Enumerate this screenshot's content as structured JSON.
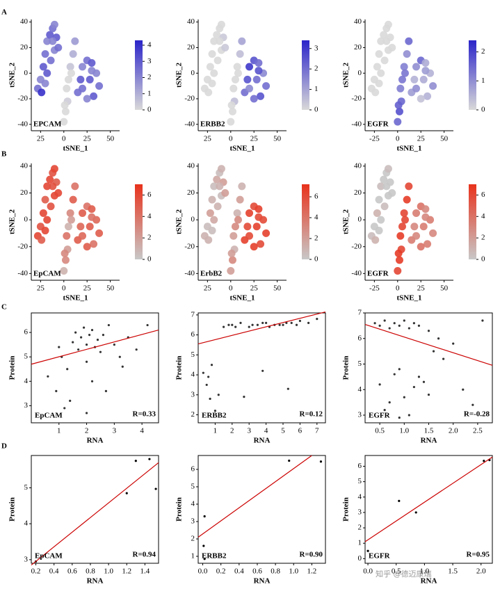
{
  "panel_labels": [
    "A",
    "B",
    "C",
    "D"
  ],
  "watermark": "知乎 @德迈康瑞",
  "chart_data": [
    {
      "type": "tsne",
      "label": "EPCAM",
      "xlabel": "tSNE_1",
      "ylabel": "tSNE_2",
      "xlim": [
        -35,
        60
      ],
      "ylim": [
        -45,
        42
      ],
      "xticks": [
        {
          "value": -25,
          "label": "25"
        },
        0,
        25,
        50
      ],
      "yticks": [
        -40,
        -20,
        0,
        20,
        40
      ],
      "x": [
        -28,
        -25,
        -22,
        -20,
        -18,
        -15,
        -12,
        -10,
        -8,
        -10,
        -14,
        -18,
        -20,
        -24,
        -6,
        -12,
        0,
        2,
        4,
        3,
        5,
        7,
        10,
        12,
        8,
        1,
        15,
        18,
        20,
        25,
        30,
        35,
        38,
        32,
        25,
        20,
        28,
        30
      ],
      "y": [
        -12,
        -5,
        5,
        15,
        25,
        30,
        35,
        38,
        28,
        18,
        10,
        0,
        -8,
        -15,
        20,
        25,
        -38,
        -30,
        -22,
        -12,
        -5,
        5,
        15,
        25,
        0,
        -25,
        -15,
        -5,
        5,
        10,
        8,
        0,
        -10,
        -18,
        -20,
        -12,
        -5,
        2
      ],
      "values": [
        2.5,
        2,
        3,
        2.5,
        2,
        3,
        2.5,
        2,
        3,
        2,
        2.5,
        3,
        2,
        4,
        2.5,
        2,
        0,
        0,
        0.3,
        0,
        0,
        0.5,
        1,
        1.5,
        0,
        0,
        2.5,
        3,
        2,
        2.5,
        3,
        2,
        2.5,
        3,
        2,
        2.5,
        3,
        2
      ],
      "colorbar": {
        "lim": [
          0,
          4.3
        ],
        "ticks": [
          0,
          1,
          2,
          3,
          4
        ],
        "colors": [
          "#d9d9d9",
          "#2b24c9"
        ]
      }
    },
    {
      "type": "tsne",
      "label": "ERBB2",
      "xlabel": "tSNE_1",
      "ylabel": "tSNE_2",
      "xlim": [
        -35,
        60
      ],
      "ylim": [
        -45,
        42
      ],
      "xticks": [
        {
          "value": -25,
          "label": "25"
        },
        0,
        25,
        50
      ],
      "yticks": [
        -40,
        -20,
        0,
        20,
        40
      ],
      "x": [
        -28,
        -25,
        -22,
        -20,
        -18,
        -15,
        -12,
        -10,
        -8,
        -10,
        -14,
        -18,
        -20,
        -24,
        -6,
        -12,
        0,
        2,
        4,
        3,
        5,
        7,
        10,
        12,
        8,
        1,
        15,
        18,
        20,
        25,
        30,
        35,
        38,
        32,
        25,
        20,
        28,
        30
      ],
      "y": [
        -12,
        -5,
        5,
        15,
        25,
        30,
        35,
        38,
        28,
        18,
        10,
        0,
        -8,
        -15,
        20,
        25,
        -38,
        -30,
        -22,
        -12,
        -5,
        5,
        15,
        25,
        0,
        -25,
        -15,
        -5,
        5,
        10,
        8,
        0,
        -10,
        -18,
        -20,
        -12,
        -5,
        2
      ],
      "values": [
        0,
        0,
        0,
        0,
        0,
        0,
        0,
        0,
        0.3,
        0,
        0,
        0,
        0,
        0,
        0.3,
        0,
        0,
        0,
        0.5,
        0,
        0,
        0,
        0.5,
        1,
        0,
        0,
        2,
        2.5,
        3,
        2.5,
        2,
        1.5,
        2,
        2.5,
        2,
        1.5,
        2,
        2.5
      ],
      "colorbar": {
        "lim": [
          0,
          3.4
        ],
        "ticks": [
          0,
          1,
          2,
          3
        ],
        "colors": [
          "#d9d9d9",
          "#2b24c9"
        ]
      }
    },
    {
      "type": "tsne",
      "label": "EGFR",
      "xlabel": "tSNE_1",
      "ylabel": "tSNE_2",
      "xlim": [
        -35,
        60
      ],
      "ylim": [
        -45,
        42
      ],
      "xticks": [
        -25,
        0,
        25,
        50
      ],
      "yticks": [
        -40,
        -20,
        0,
        20,
        40
      ],
      "x": [
        -28,
        -25,
        -22,
        -20,
        -18,
        -15,
        -12,
        -10,
        -8,
        -10,
        -14,
        -18,
        -20,
        -24,
        -6,
        -12,
        0,
        2,
        4,
        3,
        5,
        7,
        10,
        12,
        8,
        1,
        15,
        18,
        20,
        25,
        30,
        35,
        38,
        32,
        25,
        20,
        28,
        30
      ],
      "y": [
        -12,
        -5,
        5,
        15,
        25,
        30,
        35,
        38,
        28,
        18,
        10,
        0,
        -8,
        -15,
        20,
        25,
        -38,
        -30,
        -22,
        -12,
        -5,
        5,
        15,
        25,
        0,
        -25,
        -15,
        -5,
        5,
        10,
        8,
        0,
        -10,
        -18,
        -20,
        -12,
        -5,
        2
      ],
      "values": [
        0,
        0,
        0,
        0,
        0,
        0,
        0,
        0,
        0,
        0,
        0,
        0,
        0,
        0,
        0,
        0,
        1.5,
        1.8,
        1.5,
        1.2,
        1.3,
        1.2,
        1,
        1.5,
        1.3,
        1.6,
        0.8,
        0.5,
        1,
        1.5,
        0.6,
        0.5,
        1,
        0.5,
        0.3,
        1,
        0.6,
        0.8
      ],
      "colorbar": {
        "lim": [
          0,
          2.4
        ],
        "ticks": [
          0,
          1,
          2
        ],
        "colors": [
          "#d9d9d9",
          "#2b24c9"
        ]
      }
    },
    {
      "type": "tsne",
      "label": "EpCAM",
      "xlabel": "tSNE_1",
      "ylabel": "tSNE_2",
      "xlim": [
        -35,
        60
      ],
      "ylim": [
        -45,
        42
      ],
      "xticks": [
        {
          "value": -25,
          "label": "25"
        },
        0,
        25,
        50
      ],
      "yticks": [
        -40,
        -20,
        0,
        20,
        40
      ],
      "x": [
        -28,
        -25,
        -22,
        -20,
        -18,
        -15,
        -12,
        -10,
        -8,
        -10,
        -14,
        -18,
        -20,
        -24,
        -6,
        -12,
        0,
        2,
        4,
        3,
        5,
        7,
        10,
        12,
        8,
        1,
        15,
        18,
        20,
        25,
        30,
        35,
        38,
        32,
        25,
        20,
        28,
        30
      ],
      "y": [
        -12,
        -5,
        5,
        15,
        25,
        30,
        35,
        38,
        28,
        18,
        10,
        0,
        -8,
        -15,
        20,
        25,
        -38,
        -30,
        -22,
        -12,
        -5,
        5,
        15,
        25,
        0,
        -25,
        -15,
        -5,
        5,
        10,
        8,
        0,
        -10,
        -18,
        -20,
        -12,
        -5,
        2
      ],
      "values": [
        6,
        5.5,
        6,
        5,
        6,
        6,
        5.5,
        6,
        5,
        6,
        5.5,
        6,
        6,
        5,
        6,
        5.5,
        1,
        3,
        2,
        4,
        1,
        3,
        5,
        4,
        2,
        3,
        5,
        4.5,
        5,
        4,
        5,
        4.5,
        5,
        4,
        5,
        4.5,
        5,
        4
      ],
      "colorbar": {
        "lim": [
          0,
          7
        ],
        "ticks": [
          0,
          2,
          4,
          6
        ],
        "colors": [
          "#c8c8c8",
          "#e8321c"
        ]
      }
    },
    {
      "type": "tsne",
      "label": "ErbB2",
      "xlabel": "tSNE_1",
      "ylabel": "tSNE_2",
      "xlim": [
        -35,
        60
      ],
      "ylim": [
        -45,
        42
      ],
      "xticks": [
        {
          "value": -25,
          "label": "25"
        },
        0,
        25,
        50
      ],
      "yticks": [
        -40,
        -20,
        0,
        20,
        40
      ],
      "x": [
        -28,
        -25,
        -22,
        -20,
        -18,
        -15,
        -12,
        -10,
        -8,
        -10,
        -14,
        -18,
        -20,
        -24,
        -6,
        -12,
        0,
        2,
        4,
        3,
        5,
        7,
        10,
        12,
        8,
        1,
        15,
        18,
        20,
        25,
        30,
        35,
        38,
        32,
        25,
        20,
        28,
        30
      ],
      "y": [
        -12,
        -5,
        5,
        15,
        25,
        30,
        35,
        38,
        28,
        18,
        10,
        0,
        -8,
        -15,
        20,
        25,
        -38,
        -30,
        -22,
        -12,
        -5,
        5,
        15,
        25,
        0,
        -25,
        -15,
        -5,
        5,
        10,
        8,
        0,
        -10,
        -18,
        -20,
        -12,
        -5,
        2
      ],
      "values": [
        1,
        0.5,
        2,
        1,
        0.5,
        1.5,
        0.5,
        1,
        2,
        0.5,
        1,
        1.5,
        0.5,
        1,
        2,
        1,
        2,
        3,
        1,
        2,
        3,
        1,
        2,
        1,
        3,
        2,
        6.5,
        6,
        6.5,
        6,
        6.5,
        6,
        6.5,
        6,
        6.5,
        6,
        6.5,
        6
      ],
      "colorbar": {
        "lim": [
          0,
          7.2
        ],
        "ticks": [
          0,
          2,
          4,
          6
        ],
        "colors": [
          "#c8c8c8",
          "#e8321c"
        ]
      }
    },
    {
      "type": "tsne",
      "label": "EGFR",
      "xlabel": "tSNE_1",
      "ylabel": "tSNE_2",
      "xlim": [
        -35,
        60
      ],
      "ylim": [
        -45,
        42
      ],
      "xticks": [
        -25,
        0,
        25,
        50
      ],
      "yticks": [
        -40,
        -20,
        0,
        20,
        40
      ],
      "x": [
        -28,
        -25,
        -22,
        -20,
        -18,
        -15,
        -12,
        -10,
        -8,
        -10,
        -14,
        -18,
        -20,
        -24,
        -6,
        -12,
        0,
        2,
        4,
        3,
        5,
        7,
        10,
        12,
        8,
        1,
        15,
        18,
        20,
        25,
        30,
        35,
        38,
        32,
        25,
        20,
        28,
        30
      ],
      "y": [
        -12,
        -5,
        5,
        15,
        25,
        30,
        35,
        38,
        28,
        18,
        10,
        0,
        -8,
        -15,
        20,
        25,
        -38,
        -30,
        -22,
        -12,
        -5,
        5,
        15,
        25,
        0,
        -25,
        -15,
        -5,
        5,
        10,
        8,
        0,
        -10,
        -18,
        -20,
        -12,
        -5,
        2
      ],
      "values": [
        0.5,
        0,
        1,
        0,
        0.5,
        0,
        0,
        0.5,
        0,
        0,
        0.5,
        0,
        0,
        1,
        0,
        0,
        6,
        6.5,
        6,
        6.5,
        6,
        6,
        6.5,
        6,
        6,
        6.5,
        3.5,
        3,
        3.5,
        4,
        3,
        3.5,
        3,
        3.5,
        4,
        3,
        3.5,
        3
      ],
      "colorbar": {
        "lim": [
          0,
          7
        ],
        "ticks": [
          0,
          2,
          4,
          6
        ],
        "colors": [
          "#c8c8c8",
          "#e8321c"
        ]
      }
    },
    {
      "type": "scatter",
      "label": "EpCAM",
      "r_label": "R=0.33",
      "xlabel": "RNA",
      "ylabel": "Protein",
      "xlim": [
        0,
        4.6
      ],
      "ylim": [
        2.3,
        6.8
      ],
      "xticks": [
        1,
        2,
        3,
        4
      ],
      "yticks": [
        3,
        4,
        5,
        6
      ],
      "color": "#333333",
      "x": [
        0.6,
        0.9,
        1.1,
        1.3,
        1.5,
        1.6,
        1.7,
        1.8,
        1.9,
        2.0,
        2.0,
        2.1,
        2.2,
        2.3,
        2.4,
        2.5,
        2.6,
        2.8,
        3.0,
        3.2,
        3.5,
        3.8,
        4.2,
        1.2,
        1.4,
        2.2,
        2.7,
        1.0,
        3.3,
        2.0
      ],
      "y": [
        4.2,
        3.6,
        5.0,
        4.5,
        5.6,
        6.0,
        5.3,
        5.8,
        6.2,
        5.5,
        4.8,
        5.9,
        6.1,
        5.4,
        5.7,
        5.2,
        5.9,
        6.3,
        5.5,
        5.0,
        5.8,
        5.3,
        6.3,
        2.9,
        3.2,
        4.0,
        3.6,
        5.4,
        4.6,
        2.7
      ],
      "fit": {
        "x": [
          0,
          4.6
        ],
        "y": [
          4.7,
          6.1
        ],
        "color": "#cc0000"
      }
    },
    {
      "type": "scatter",
      "label": "ERBB2",
      "r_label": "R=0.12",
      "xlabel": "RNA",
      "ylabel": "Protein",
      "xlim": [
        0,
        7.5
      ],
      "ylim": [
        1.6,
        7.1
      ],
      "xticks": [
        1,
        2,
        3,
        4,
        5,
        6,
        7
      ],
      "yticks": [
        2,
        3,
        4,
        5,
        6,
        7
      ],
      "color": "#333333",
      "x": [
        0.3,
        0.5,
        0.7,
        0.8,
        1.0,
        1.5,
        2.0,
        2.5,
        3.0,
        3.5,
        4.0,
        4.5,
        5.0,
        5.5,
        6.0,
        6.5,
        7.0,
        1.8,
        2.2,
        3.2,
        3.8,
        4.2,
        4.8,
        5.2,
        5.8,
        0.6,
        1.2,
        3.8,
        5.3,
        2.7
      ],
      "y": [
        4.1,
        3.5,
        2.8,
        4.5,
        2.2,
        6.4,
        6.5,
        6.6,
        6.4,
        6.5,
        6.6,
        6.5,
        6.5,
        6.6,
        6.7,
        6.6,
        6.8,
        6.5,
        6.4,
        6.5,
        6.6,
        6.4,
        6.5,
        6.6,
        6.5,
        3.9,
        3.0,
        4.2,
        3.3,
        2.9
      ],
      "fit": {
        "x": [
          0,
          7.5
        ],
        "y": [
          5.55,
          7.15
        ],
        "color": "#cc0000"
      }
    },
    {
      "type": "scatter",
      "label": "EGFR",
      "r_label": "R=-0.28",
      "xlabel": "RNA",
      "ylabel": "Protein",
      "xlim": [
        0.2,
        2.8
      ],
      "ylim": [
        2.7,
        7
      ],
      "xticks": [
        0.5,
        {
          "value": 1,
          "label": "1.0"
        },
        1.5,
        {
          "value": 2,
          "label": "2.0"
        },
        2.5
      ],
      "yticks": [
        3,
        4,
        5,
        6,
        7
      ],
      "color": "#333333",
      "x": [
        0.4,
        0.5,
        0.6,
        0.7,
        0.8,
        0.9,
        1.0,
        1.1,
        1.2,
        1.3,
        1.5,
        1.7,
        2.0,
        2.6,
        0.5,
        0.7,
        0.9,
        1.1,
        1.3,
        1.5,
        1.8,
        2.2,
        0.6,
        0.8,
        1.0,
        1.2,
        1.6,
        2.4,
        0.9,
        1.4
      ],
      "y": [
        6.6,
        6.5,
        6.7,
        6.4,
        6.6,
        6.5,
        6.7,
        6.4,
        6.6,
        6.5,
        6.3,
        6.0,
        5.8,
        6.7,
        4.2,
        3.5,
        4.8,
        3.0,
        4.5,
        3.8,
        5.2,
        4.0,
        3.2,
        4.6,
        3.7,
        4.1,
        5.5,
        3.4,
        2.9,
        4.3
      ],
      "fit": {
        "x": [
          0.2,
          2.8
        ],
        "y": [
          6.55,
          4.95
        ],
        "color": "#cc0000"
      }
    },
    {
      "type": "scatter",
      "label": "EpCAM",
      "r_label": "R=0.94",
      "xlabel": "RNA",
      "ylabel": "Protein",
      "xlim": [
        0.15,
        1.55
      ],
      "ylim": [
        2.9,
        5.9
      ],
      "xticks": [
        0.2,
        0.4,
        0.6,
        0.8,
        {
          "value": 1,
          "label": "1.0"
        },
        1.2,
        1.4
      ],
      "yticks": [
        3,
        4,
        5
      ],
      "color": "#000000",
      "x": [
        0.2,
        1.2,
        1.3,
        1.45,
        1.52
      ],
      "y": [
        2.95,
        4.85,
        5.75,
        5.8,
        4.97
      ],
      "fit": {
        "x": [
          0.15,
          1.55
        ],
        "y": [
          2.85,
          5.7
        ],
        "color": "#cc0000"
      }
    },
    {
      "type": "scatter",
      "label": "ERBB2",
      "r_label": "R=0.90",
      "xlabel": "RNA",
      "ylabel": "Protein",
      "xlim": [
        -0.05,
        1.35
      ],
      "ylim": [
        0.6,
        6.8
      ],
      "xticks": [
        {
          "value": 0,
          "label": "0.0"
        },
        0.2,
        0.4,
        0.6,
        0.8,
        {
          "value": 1,
          "label": "1.0"
        },
        1.2
      ],
      "yticks": [
        1,
        2,
        3,
        4,
        5,
        6
      ],
      "color": "#000000",
      "x": [
        0.02,
        0.01,
        0.02,
        0.95,
        1.3
      ],
      "y": [
        3.3,
        1.6,
        0.85,
        6.5,
        6.45
      ],
      "fit": {
        "x": [
          -0.05,
          1.2
        ],
        "y": [
          2.1,
          6.8
        ],
        "color": "#cc0000"
      }
    },
    {
      "type": "scatter",
      "label": "EGFR",
      "r_label": "R=0.95",
      "xlabel": "RNA",
      "ylabel": "Protein",
      "xlim": [
        -0.05,
        2.2
      ],
      "ylim": [
        -0.3,
        6.7
      ],
      "xticks": [
        {
          "value": 0,
          "label": "0.0"
        },
        0.5,
        {
          "value": 1,
          "label": "1.0"
        },
        1.5,
        {
          "value": 2,
          "label": "2.0"
        }
      ],
      "yticks": [
        0,
        1,
        2,
        3,
        4,
        5,
        6
      ],
      "color": "#000000",
      "x": [
        0.0,
        0.55,
        0.85,
        2.05,
        2.15
      ],
      "y": [
        0.5,
        3.75,
        3.0,
        6.35,
        6.4
      ],
      "fit": {
        "x": [
          -0.05,
          2.2
        ],
        "y": [
          1.1,
          6.6
        ],
        "color": "#cc0000"
      }
    }
  ]
}
